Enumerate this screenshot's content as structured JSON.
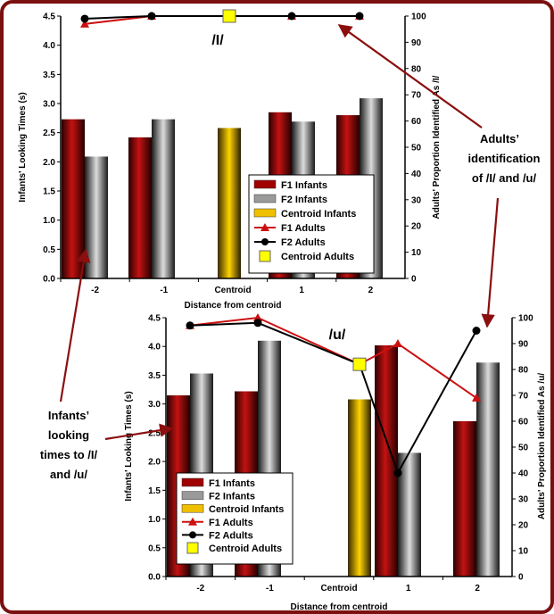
{
  "colors": {
    "frame": "#7a1010",
    "arrow": "#8b0f0f",
    "f1": "#b01010",
    "f2": "#8a8a8a",
    "centroid": "#f0c000",
    "adults_f1": "#cc1010",
    "adults_f2": "#000000",
    "adults_centroid": "#ffff00"
  },
  "annotations": {
    "adults_id": [
      "Adults’",
      "identification",
      "of /I/ and /u/"
    ],
    "infants_looking": [
      "Infants’",
      "looking",
      "times to /I/",
      "and /u/"
    ]
  },
  "chart_data": [
    {
      "type": "bar",
      "title": "/I/",
      "categories": [
        "-2",
        "-1",
        "Centroid",
        "1",
        "2"
      ],
      "xlabel": "Distance from centroid",
      "ylabel": "Infants' Looking Times (s)",
      "y2label": "Adults' Proportion Identified As /I/",
      "ylim": [
        0,
        4.5
      ],
      "yticks": [
        "0.0",
        "0.5",
        "1.0",
        "1.5",
        "2.0",
        "2.5",
        "3.0",
        "3.5",
        "4.0",
        "4.5"
      ],
      "y2lim": [
        0,
        100
      ],
      "y2ticks": [
        "0",
        "10",
        "20",
        "30",
        "40",
        "50",
        "60",
        "70",
        "80",
        "90",
        "100"
      ],
      "series": [
        {
          "name": "F1 Infants",
          "values": [
            2.73,
            2.42,
            null,
            2.85,
            2.8
          ]
        },
        {
          "name": "F2 Infants",
          "values": [
            2.09,
            2.73,
            null,
            2.69,
            3.09
          ]
        },
        {
          "name": "Centroid Infants",
          "values": [
            null,
            null,
            2.58,
            null,
            null
          ]
        }
      ],
      "line_series": [
        {
          "name": "F1 Adults",
          "values": [
            97,
            100,
            null,
            100,
            100
          ]
        },
        {
          "name": "F2 Adults",
          "values": [
            99,
            100,
            null,
            100,
            100
          ]
        },
        {
          "name": "Centroid Adults",
          "values": [
            null,
            null,
            100,
            null,
            null
          ]
        }
      ],
      "legend": "right"
    },
    {
      "type": "bar",
      "title": "/u/",
      "categories": [
        "-2",
        "-1",
        "Centroid",
        "1",
        "2"
      ],
      "xlabel": "Distance from centroid",
      "ylabel": "Infants' Looking Times (s)",
      "y2label": "Adults' Proportion Identified As /u/",
      "ylim": [
        0,
        4.5
      ],
      "yticks": [
        "0.0",
        "0.5",
        "1.0",
        "1.5",
        "2.0",
        "2.5",
        "3.0",
        "3.5",
        "4.0",
        "4.5"
      ],
      "y2lim": [
        0,
        100
      ],
      "y2ticks": [
        "0",
        "10",
        "20",
        "30",
        "40",
        "50",
        "60",
        "70",
        "80",
        "90",
        "100"
      ],
      "series": [
        {
          "name": "F1 Infants",
          "values": [
            3.15,
            3.22,
            null,
            4.02,
            2.7
          ]
        },
        {
          "name": "F2 Infants",
          "values": [
            3.53,
            4.1,
            null,
            2.15,
            3.72
          ]
        },
        {
          "name": "Centroid Infants",
          "values": [
            null,
            null,
            3.08,
            null,
            null
          ]
        }
      ],
      "line_series": [
        {
          "name": "F1 Adults",
          "values": [
            97,
            100,
            82,
            90,
            69
          ]
        },
        {
          "name": "F2 Adults",
          "values": [
            97,
            98,
            82,
            40,
            95
          ]
        },
        {
          "name": "Centroid Adults",
          "values": [
            null,
            null,
            82,
            null,
            null
          ]
        }
      ],
      "legend": "bottom-left"
    }
  ]
}
